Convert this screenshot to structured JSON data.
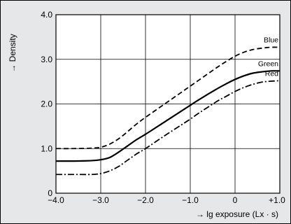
{
  "chart_data": {
    "type": "line",
    "xlabel": "→  lg exposure (Lx · s)",
    "ylabel": "→ Density",
    "xlim": [
      -4.0,
      1.0
    ],
    "ylim": [
      0,
      4.0
    ],
    "x_ticks": [
      -4.0,
      -3.0,
      -2.0,
      -1.0,
      0,
      1.0
    ],
    "x_tick_labels": [
      "−4.0",
      "−3.0",
      "−2.0",
      "−1.0",
      "0",
      "+1.0"
    ],
    "y_ticks": [
      0,
      1.0,
      2.0,
      3.0,
      4.0
    ],
    "y_tick_labels": [
      "0",
      "1.0",
      "2.0",
      "3.0",
      "4.0"
    ],
    "grid": true,
    "legend": "inline labels at right end of curves",
    "series": [
      {
        "name": "Blue",
        "style": "dashed",
        "color": "#000000",
        "x": [
          -4.0,
          -3.6,
          -3.2,
          -3.0,
          -2.8,
          -2.6,
          -2.4,
          -2.2,
          -2.0,
          -1.6,
          -1.2,
          -1.0,
          -0.8,
          -0.4,
          -0.2,
          0.0,
          0.2,
          0.4,
          0.6,
          0.8,
          1.0
        ],
        "y": [
          1.0,
          1.0,
          1.01,
          1.03,
          1.1,
          1.22,
          1.38,
          1.55,
          1.7,
          1.98,
          2.26,
          2.4,
          2.54,
          2.82,
          2.95,
          3.07,
          3.16,
          3.22,
          3.25,
          3.27,
          3.27
        ]
      },
      {
        "name": "Green",
        "style": "solid",
        "color": "#000000",
        "x": [
          -4.0,
          -3.6,
          -3.2,
          -3.0,
          -2.8,
          -2.6,
          -2.4,
          -2.2,
          -2.0,
          -1.6,
          -1.2,
          -1.0,
          -0.8,
          -0.4,
          -0.2,
          0.0,
          0.2,
          0.4,
          0.6,
          0.8,
          1.0
        ],
        "y": [
          0.72,
          0.72,
          0.73,
          0.75,
          0.8,
          0.92,
          1.06,
          1.2,
          1.32,
          1.58,
          1.84,
          1.97,
          2.1,
          2.34,
          2.45,
          2.55,
          2.63,
          2.69,
          2.72,
          2.74,
          2.74
        ]
      },
      {
        "name": "Red",
        "style": "dash-dot",
        "color": "#000000",
        "x": [
          -4.0,
          -3.6,
          -3.2,
          -3.0,
          -2.8,
          -2.6,
          -2.4,
          -2.2,
          -2.0,
          -1.6,
          -1.2,
          -1.0,
          -0.8,
          -0.4,
          -0.2,
          0.0,
          0.2,
          0.4,
          0.6,
          0.8,
          1.0
        ],
        "y": [
          0.42,
          0.42,
          0.42,
          0.44,
          0.5,
          0.6,
          0.74,
          0.88,
          1.0,
          1.27,
          1.53,
          1.66,
          1.8,
          2.06,
          2.17,
          2.28,
          2.37,
          2.44,
          2.49,
          2.51,
          2.52
        ]
      }
    ],
    "colors": {
      "background": "#e6e7e9",
      "plot_area": "#ffffff",
      "grid": "#000000",
      "lines": "#000000"
    }
  }
}
